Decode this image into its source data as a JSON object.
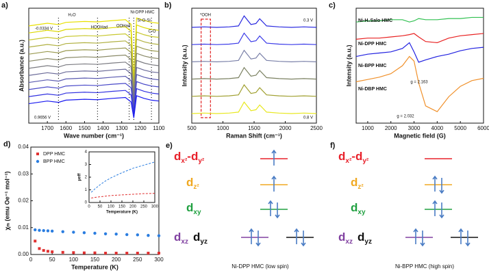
{
  "chart_data": [
    {
      "panel": "a)",
      "type": "line",
      "y_label": "Absorbance (a.u.)",
      "x_label": "Wave number (cm⁻¹)",
      "xlim": [
        1800,
        1100
      ],
      "xticks": [
        1700,
        1600,
        1500,
        1400,
        1300,
        1200,
        1100
      ],
      "ylim": [
        0,
        13
      ],
      "x": [
        1800,
        1700,
        1640,
        1600,
        1500,
        1430,
        1350,
        1280,
        1250,
        1235,
        1220,
        1180,
        1140,
        1100
      ],
      "markers": [
        1640,
        1430,
        1260,
        1235,
        1140
      ],
      "annotations": [
        {
          "text": "H₂O",
          "color": "#111111"
        },
        {
          "text": "HOOHad",
          "color": "#111111"
        },
        {
          "text": "OOHad",
          "color": "#111111"
        },
        {
          "text": "Ni-DPP HMC",
          "color": "#111111"
        },
        {
          "text": "Si-O-Si",
          "color": "#111111"
        },
        {
          "text": "C-O",
          "color": "#111111"
        },
        {
          "text": "-0.0334 V",
          "color": "#2030e0"
        },
        {
          "text": "0.9656 V",
          "color": "#2030e0"
        }
      ],
      "series": [
        {
          "color": "#e8e000",
          "values": [
            11.0,
            11.3,
            11.15,
            11.4,
            11.5,
            11.45,
            11.6,
            11.7,
            11.2,
            5.0,
            11.9,
            11.6,
            11.4,
            11.3
          ]
        },
        {
          "color": "#dcd800",
          "values": [
            10.2,
            10.5,
            10.35,
            10.6,
            10.7,
            10.65,
            10.8,
            10.9,
            10.4,
            4.6,
            11.1,
            10.8,
            10.6,
            10.5
          ]
        },
        {
          "color": "#c8c830",
          "values": [
            9.4,
            9.7,
            9.55,
            9.8,
            9.9,
            9.85,
            10.0,
            10.1,
            9.6,
            4.2,
            10.3,
            10.0,
            9.8,
            9.7
          ]
        },
        {
          "color": "#b0b040",
          "values": [
            8.6,
            8.9,
            8.75,
            9.0,
            9.1,
            9.05,
            9.2,
            9.3,
            8.8,
            3.8,
            9.5,
            9.2,
            9.0,
            8.9
          ]
        },
        {
          "color": "#9a9a50",
          "values": [
            7.8,
            8.1,
            7.95,
            8.2,
            8.3,
            8.25,
            8.4,
            8.5,
            8.0,
            3.4,
            8.7,
            8.4,
            8.2,
            8.1
          ]
        },
        {
          "color": "#8a8a68",
          "values": [
            7.0,
            7.3,
            7.15,
            7.4,
            7.5,
            7.45,
            7.6,
            7.7,
            7.2,
            3.0,
            7.9,
            7.6,
            7.4,
            7.3
          ]
        },
        {
          "color": "#7a7a80",
          "values": [
            6.2,
            6.5,
            6.35,
            6.6,
            6.7,
            6.65,
            6.8,
            6.9,
            6.4,
            2.6,
            7.1,
            6.8,
            6.6,
            6.5
          ]
        },
        {
          "color": "#6a6a98",
          "values": [
            5.4,
            5.7,
            5.55,
            5.8,
            5.9,
            5.85,
            6.0,
            6.1,
            5.6,
            2.2,
            6.3,
            6.0,
            5.8,
            5.7
          ]
        },
        {
          "color": "#5a5ab0",
          "values": [
            4.6,
            4.9,
            4.75,
            5.0,
            5.1,
            5.05,
            5.2,
            5.3,
            4.8,
            1.8,
            5.5,
            5.2,
            5.0,
            4.9
          ]
        },
        {
          "color": "#4848c8",
          "values": [
            3.8,
            4.1,
            3.95,
            4.2,
            4.3,
            4.25,
            4.4,
            4.5,
            4.0,
            1.4,
            4.7,
            4.4,
            4.2,
            4.1
          ]
        },
        {
          "color": "#3030e0",
          "values": [
            3.0,
            3.3,
            3.15,
            3.4,
            3.5,
            3.45,
            3.6,
            3.7,
            3.2,
            1.0,
            3.9,
            3.6,
            3.4,
            3.3
          ]
        },
        {
          "color": "#1818f0",
          "values": [
            2.2,
            2.5,
            2.35,
            2.6,
            2.7,
            2.65,
            2.8,
            2.9,
            2.4,
            0.6,
            3.1,
            2.8,
            2.6,
            2.5
          ]
        }
      ]
    },
    {
      "panel": "b)",
      "type": "line",
      "y_label": "Intensity (a.u.)",
      "x_label": "Raman Shift (cm⁻¹)",
      "xlim": [
        500,
        2500
      ],
      "xticks": [
        500,
        1000,
        1500,
        2000,
        2500
      ],
      "ylim": [
        0,
        12
      ],
      "x": [
        500,
        700,
        900,
        1100,
        1250,
        1340,
        1450,
        1530,
        1590,
        1700,
        1900,
        2100,
        2300,
        2500
      ],
      "highlight": [
        650,
        800
      ],
      "annotations": [
        {
          "text": "*OOH",
          "color": "#111111"
        },
        {
          "text": "0.3 V",
          "color": "#111111"
        },
        {
          "text": "0.8 V",
          "color": "#111111"
        }
      ],
      "series": [
        {
          "color": "#2a2ae0",
          "values": [
            10.0,
            10.05,
            10.0,
            10.05,
            10.15,
            11.2,
            10.3,
            10.4,
            10.9,
            10.15,
            10.05,
            10.0,
            10.05,
            10.0
          ]
        },
        {
          "color": "#3a3ae8",
          "values": [
            8.2,
            8.25,
            8.2,
            8.25,
            8.35,
            9.4,
            8.5,
            8.6,
            9.1,
            8.35,
            8.25,
            8.2,
            8.25,
            8.2
          ]
        },
        {
          "color": "#7a80a8",
          "values": [
            6.4,
            6.45,
            6.4,
            6.45,
            6.55,
            7.6,
            6.7,
            6.8,
            7.3,
            6.55,
            6.45,
            6.4,
            6.45,
            6.4
          ]
        },
        {
          "color": "#7a8060",
          "values": [
            4.6,
            4.65,
            4.6,
            4.65,
            4.75,
            5.8,
            4.9,
            5.0,
            5.5,
            4.75,
            4.65,
            4.6,
            4.65,
            4.6
          ]
        },
        {
          "color": "#a0a030",
          "values": [
            2.8,
            2.85,
            2.8,
            2.85,
            2.95,
            4.0,
            3.1,
            3.2,
            3.7,
            2.95,
            2.85,
            2.8,
            2.85,
            2.8
          ]
        },
        {
          "color": "#e8e820",
          "values": [
            1.0,
            1.05,
            1.0,
            1.05,
            1.15,
            2.2,
            1.3,
            1.4,
            1.9,
            1.15,
            1.05,
            1.0,
            1.05,
            1.0
          ]
        }
      ]
    },
    {
      "panel": "c)",
      "type": "line",
      "y_label": "Intensity (a.u.)",
      "x_label": "Magnetic field (G)",
      "xlim": [
        500,
        6000
      ],
      "xticks": [
        1000,
        2000,
        3000,
        4000,
        5000,
        6000
      ],
      "ylim": [
        0,
        10
      ],
      "x": [
        500,
        1000,
        1500,
        2000,
        2500,
        2800,
        3000,
        3200,
        3500,
        4000,
        4500,
        5000,
        5500,
        6000
      ],
      "annotations": [
        {
          "text": "g = 2.163",
          "color": "#2020d0"
        },
        {
          "text": "g = 2.032",
          "color": "#f0902a"
        }
      ],
      "series": [
        {
          "name": "Ni-H₂Salo HMC",
          "color": "#30c050",
          "values": [
            8.8,
            8.9,
            8.9,
            9.0,
            9.0,
            8.8,
            8.9,
            9.1,
            9.0,
            9.0,
            9.1,
            9.1,
            9.2,
            9.2
          ]
        },
        {
          "name": "Ni-DPP HMC",
          "color": "#e82020",
          "values": [
            7.3,
            7.4,
            7.4,
            7.5,
            7.6,
            7.7,
            7.8,
            7.5,
            7.1,
            7.0,
            7.4,
            7.6,
            7.7,
            7.8
          ]
        },
        {
          "name": "Ni-BPP HMC",
          "color": "#2020e0",
          "values": [
            5.8,
            6.0,
            6.1,
            6.2,
            6.5,
            7.0,
            6.2,
            5.3,
            5.5,
            5.8,
            6.0,
            6.3,
            6.5,
            6.6
          ]
        },
        {
          "name": "Ni-DBP HMC",
          "color": "#f0902a",
          "values": [
            3.6,
            3.8,
            4.0,
            4.3,
            5.0,
            5.8,
            5.4,
            3.5,
            1.5,
            1.0,
            2.3,
            3.2,
            3.7,
            3.9
          ]
        }
      ]
    },
    {
      "panel": "d)",
      "type": "scatter",
      "y_label": "χₘ (emu Oe⁻¹ mol⁻¹)",
      "x_label": "Temperature (K)",
      "xlim": [
        0,
        300
      ],
      "xticks": [
        0,
        50,
        100,
        150,
        200,
        250,
        300
      ],
      "ylim": [
        0,
        0.04
      ],
      "yticks": [
        {
          "value": 0,
          "label": "0.00"
        },
        {
          "value": 0.01,
          "label": "0.01"
        },
        {
          "value": 0.02,
          "label": "0.02"
        },
        {
          "value": 0.03,
          "label": "0.03"
        },
        {
          "value": 0.04,
          "label": "0.04"
        }
      ],
      "legend": "upper-left",
      "x": [
        10,
        20,
        30,
        40,
        50,
        75,
        100,
        125,
        150,
        175,
        200,
        225,
        250,
        275,
        300
      ],
      "series": [
        {
          "name": "DPP HMC",
          "color": "#e03030",
          "marker": "square",
          "values": [
            0.005,
            0.0022,
            0.0015,
            0.0012,
            0.001,
            0.0008,
            0.0007,
            0.0006,
            0.0006,
            0.0005,
            0.0005,
            0.0005,
            0.0005,
            0.0005,
            0.0005
          ]
        },
        {
          "name": "BPP HMC",
          "color": "#2a7de0",
          "marker": "circle",
          "values": [
            0.0092,
            0.009,
            0.0089,
            0.0088,
            0.0087,
            0.0085,
            0.0083,
            0.0081,
            0.0079,
            0.0077,
            0.0076,
            0.0074,
            0.0073,
            0.0071,
            0.007
          ]
        }
      ]
    },
    {
      "type": "line",
      "inset": true,
      "dashed": true,
      "y_label": "μeff",
      "x_label": "Temperature (K)",
      "xlim": [
        0,
        300
      ],
      "xticks": [
        0,
        50,
        100,
        150,
        200,
        250,
        300
      ],
      "ylim": [
        0,
        4
      ],
      "yticks": [
        0,
        1,
        2,
        3,
        4
      ],
      "x": [
        10,
        25,
        50,
        75,
        100,
        150,
        200,
        250,
        300
      ],
      "series": [
        {
          "color": "#2a7de0",
          "values": [
            0.8,
            1.05,
            1.4,
            1.7,
            1.95,
            2.35,
            2.7,
            2.95,
            3.2
          ]
        },
        {
          "color": "#e03030",
          "values": [
            0.35,
            0.4,
            0.45,
            0.5,
            0.55,
            0.6,
            0.65,
            0.7,
            0.72
          ]
        }
      ]
    }
  ],
  "diagrams": [
    {
      "panel": "e)",
      "caption": "Ni-DPP HMC (low spin)",
      "orbitals": [
        {
          "label": "dx²-dy²",
          "color": "#e8202a",
          "electrons": 1
        },
        {
          "label": "dz²",
          "color": "#f0a820",
          "electrons": 1
        },
        {
          "label": "dxy",
          "color": "#20a040",
          "electrons": 2
        },
        {
          "label": "dxz",
          "color": "#8040a0",
          "electrons": 2
        },
        {
          "label": "dyz",
          "color": "#111111",
          "electrons": 2
        }
      ]
    },
    {
      "panel": "f)",
      "caption": "Ni-BPP HMC (high spin)",
      "orbitals": [
        {
          "label": "dx²-dy²",
          "color": "#e8202a",
          "electrons": 0
        },
        {
          "label": "dz²",
          "color": "#f0a820",
          "electrons": 2
        },
        {
          "label": "dxy",
          "color": "#20a040",
          "electrons": 2
        },
        {
          "label": "dxz",
          "color": "#8040a0",
          "electrons": 2
        },
        {
          "label": "dyz",
          "color": "#111111",
          "electrons": 2
        }
      ]
    }
  ]
}
